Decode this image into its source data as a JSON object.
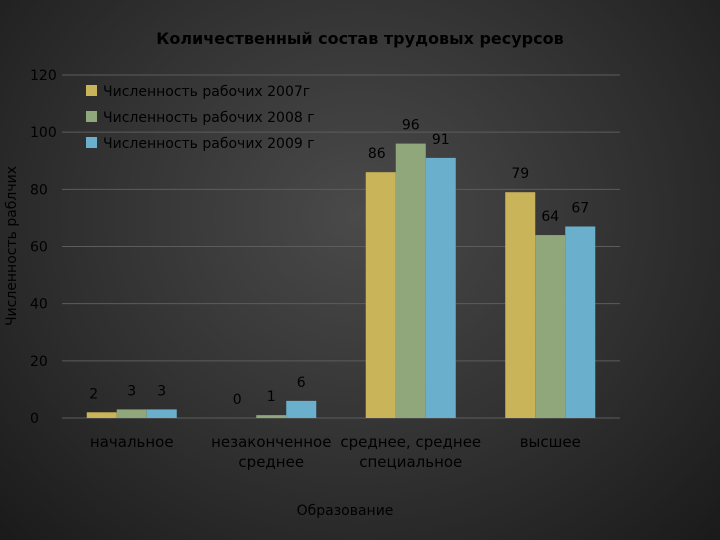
{
  "chart_data": {
    "type": "bar",
    "title": "Количественный состав трудовых ресурсов",
    "xlabel": "Образование",
    "ylabel": "Численность раблчих",
    "categories": [
      [
        "начальное"
      ],
      [
        "незаконченное",
        "среднее"
      ],
      [
        "среднее, среднее",
        "специальное"
      ],
      [
        "высшее"
      ]
    ],
    "series": [
      {
        "name": "Численность рабочих 2007г",
        "color": "#c9b45a",
        "values": [
          2,
          0,
          86,
          79
        ]
      },
      {
        "name": "Численность рабочих 2008 г",
        "color": "#8fa77a",
        "values": [
          3,
          1,
          96,
          64
        ]
      },
      {
        "name": "Численность рабочих 2009 г",
        "color": "#6ab0cc",
        "values": [
          3,
          6,
          91,
          67
        ]
      }
    ],
    "ylim": [
      0,
      120
    ],
    "yticks": [
      0,
      20,
      40,
      60,
      80,
      100,
      120
    ],
    "grid": true,
    "legend": "top-left"
  }
}
